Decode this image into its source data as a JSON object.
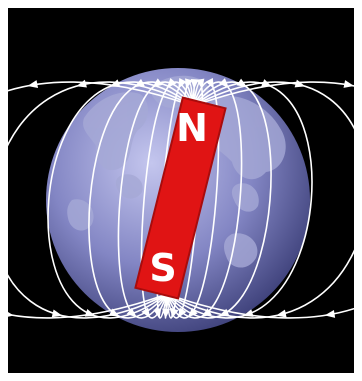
{
  "diagram": {
    "magnet": {
      "north_label": "N",
      "south_label": "S"
    },
    "colors": {
      "background": "#000000",
      "frame": "#ffffff",
      "globe_light": "#c4c6ee",
      "globe_mid": "#8386c4",
      "globe_dark": "#3a3d76",
      "continents": "#a6a9d6",
      "magnet_fill": "#e01414",
      "magnet_edge": "#a80c0c",
      "field_lines": "#ffffff",
      "pole_text": "#ffffff"
    },
    "field_line_count": 24
  }
}
